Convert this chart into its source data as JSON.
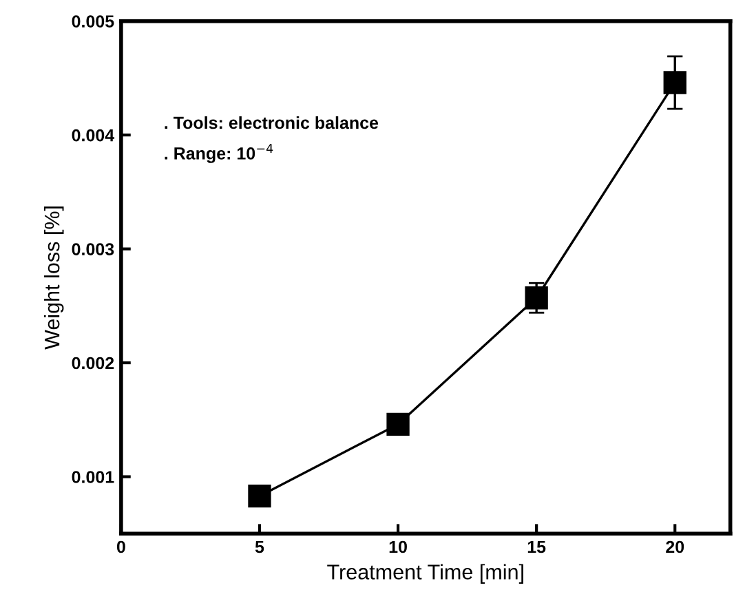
{
  "chart_data": {
    "type": "line",
    "xlabel": "Treatment Time [min]",
    "ylabel": "Weight loss [%]",
    "annotations": [
      ". Tools: electronic balance",
      ". Range: 10$^{−4}$"
    ],
    "x": [
      5,
      10,
      15,
      20
    ],
    "series": [
      {
        "color": "#000000",
        "values": [
          0.00083,
          0.00146,
          0.00257,
          0.00446
        ],
        "errors": [
          null,
          null,
          0.00013,
          0.00023
        ]
      }
    ],
    "marker": "square",
    "line_style": "solid",
    "grid": false,
    "legend": false,
    "xlim": [
      0,
      22
    ],
    "xticks": [
      0,
      5,
      10,
      15,
      20
    ],
    "ylim": [
      0.0005,
      0.005
    ],
    "yticks": [
      {
        "value": 0.001,
        "label": "0.001"
      },
      {
        "value": 0.002,
        "label": "0.002"
      },
      {
        "value": 0.003,
        "label": "0.003"
      },
      {
        "value": 0.004,
        "label": "0.004"
      },
      {
        "value": 0.005,
        "label": "0.005"
      }
    ]
  }
}
